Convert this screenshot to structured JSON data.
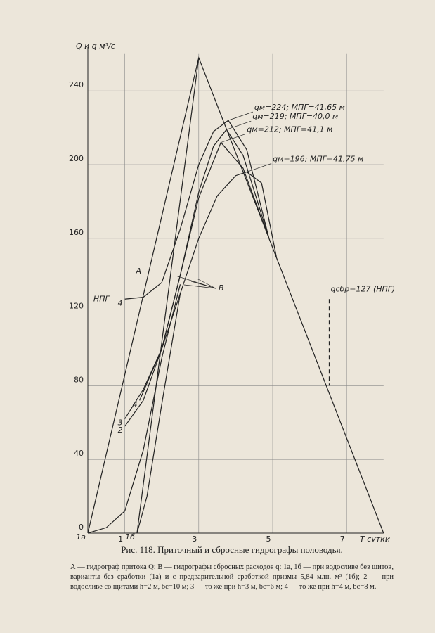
{
  "chart_data": {
    "type": "line",
    "ylabel": "Q и q м³/с",
    "xlabel": "T сутки",
    "xlim": [
      0,
      8
    ],
    "ylim": [
      0,
      260
    ],
    "xticks": [
      1,
      3,
      5,
      7
    ],
    "yticks": [
      0,
      40,
      80,
      120,
      160,
      200,
      240
    ],
    "grid": true,
    "level_label": "НПГ",
    "group_label": "В",
    "series": [
      {
        "name": "A",
        "color": "#222222",
        "x": [
          0,
          3,
          8
        ],
        "values": [
          0,
          258,
          0
        ]
      },
      {
        "color": "#222222",
        "x": [
          1.33,
          3
        ],
        "values": [
          0,
          258
        ]
      },
      {
        "name": "4",
        "annotation": "qм=224; МПГ=41,65 м",
        "color": "#222222",
        "x": [
          1,
          1.5,
          2,
          2.5,
          3,
          3.4,
          3.8,
          4.3,
          4.9
        ],
        "values": [
          127,
          128,
          136,
          165,
          200,
          218,
          224,
          208,
          160
        ]
      },
      {
        "name": "4",
        "annotation": "qм=219; МПГ=40,0 м",
        "color": "#222222",
        "x": [
          1.4,
          2,
          2.5,
          3,
          3.4,
          3.75,
          4.2,
          4.9
        ],
        "values": [
          72,
          100,
          140,
          185,
          210,
          219,
          205,
          160
        ]
      },
      {
        "name": "2",
        "annotation": "qм=212; МПГ=41,1 м",
        "color": "#222222",
        "x": [
          1,
          1.5,
          2,
          2.5,
          3,
          3.6,
          4.2,
          4.9
        ],
        "values": [
          58,
          72,
          100,
          140,
          182,
          212,
          198,
          160
        ]
      },
      {
        "name": "3",
        "annotation": "qм=196; МПГ=41,75 м",
        "color": "#222222",
        "x": [
          1,
          1.5,
          2,
          2.5,
          3,
          3.5,
          4,
          4.3,
          4.7,
          5.1
        ],
        "values": [
          62,
          78,
          100,
          130,
          160,
          183,
          194,
          196,
          190,
          150
        ]
      },
      {
        "name": "1а",
        "color": "#222222",
        "x": [
          0,
          0.5,
          1,
          1.5,
          2,
          2.5
        ],
        "values": [
          0,
          3,
          12,
          45,
          95,
          135
        ]
      },
      {
        "name": "1б",
        "color": "#222222",
        "x": [
          1.33,
          1.6,
          2,
          2.5
        ],
        "values": [
          0,
          20,
          70,
          130
        ]
      },
      {
        "name": "qсбр=127 (НПГ)",
        "color": "#222222",
        "dash": true,
        "x": [
          6.53,
          6.53
        ],
        "values": [
          127,
          80
        ]
      }
    ]
  },
  "caption": "Рис. 118. Приточный и сбросные гидрографы половодья.",
  "legend_text": "А — гидрограф притока Q; В — гидрографы сбросных расходов q: 1а, 1б — при водосливе без щитов, варианты без сработки (1а) и с предварительной сработкой призмы 5,84 млн. м³ (1б); 2 — при водосливе со щитами h=2 м, bс=10 м; 3 — то же при h=3 м, bс=6 м; 4 — то же при h=4 м, bс=8 м."
}
